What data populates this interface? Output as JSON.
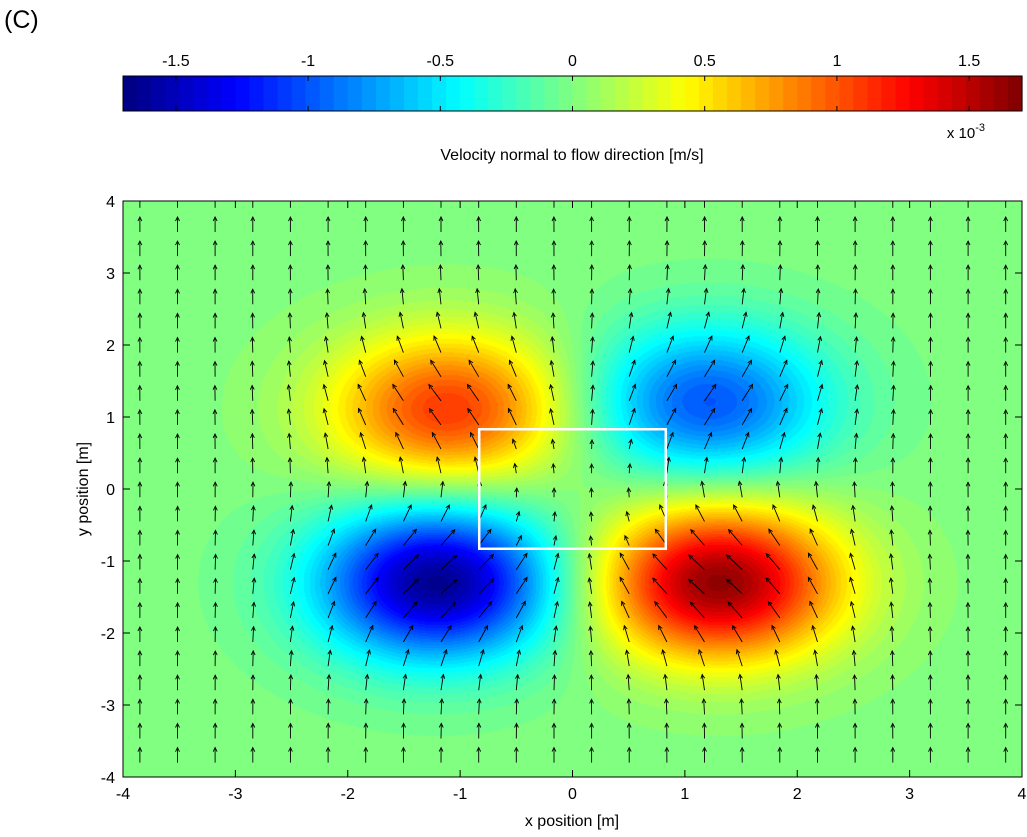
{
  "panel_label": "(C)",
  "chart_data": {
    "type": "heatmap",
    "colorbar": {
      "orientation": "horizontal",
      "colormap": "jet",
      "range": [
        -1.7,
        1.7
      ],
      "ticks": [
        -1.5,
        -1,
        -0.5,
        0,
        0.5,
        1,
        1.5
      ],
      "tick_labels": [
        "-1.5",
        "-1",
        "-0.5",
        "0",
        "0.5",
        "1",
        "1.5"
      ],
      "multiplier_prefix": "x 10",
      "multiplier_exp": "-3",
      "label": "Velocity normal to flow direction [m/s]"
    },
    "xlabel": "x position [m]",
    "ylabel": "y position [m]",
    "xlim": [
      -4,
      4
    ],
    "ylim": [
      -4,
      4
    ],
    "xticks": [
      -4,
      -3,
      -2,
      -1,
      0,
      1,
      2,
      3,
      4
    ],
    "yticks": [
      -4,
      -3,
      -2,
      -1,
      0,
      1,
      2,
      3,
      4
    ],
    "xtick_labels": [
      "-4",
      "-3",
      "-2",
      "-1",
      "0",
      "1",
      "2",
      "3",
      "4"
    ],
    "ytick_labels": [
      "-4",
      "-3",
      "-2",
      "-1",
      "0",
      "1",
      "2",
      "3",
      "4"
    ],
    "field_extrema": [
      {
        "x": -1.1,
        "y": 1.1,
        "value": 1.1
      },
      {
        "x": 1.2,
        "y": 1.2,
        "value": -1.0
      },
      {
        "x": -1.2,
        "y": -1.3,
        "value": -1.65
      },
      {
        "x": 1.3,
        "y": -1.3,
        "value": 1.65
      }
    ],
    "quiver": {
      "x_start": -3.85,
      "x_step": 0.335,
      "x_count": 24,
      "y_start": -3.8,
      "y_step": 0.335,
      "y_count": 24,
      "arrow_color": "#000000",
      "background_flow_direction": "+y"
    },
    "rectangle": {
      "x0": -0.83,
      "x1": 0.83,
      "y0": -0.83,
      "y1": 0.83,
      "color": "#ffffff"
    }
  }
}
